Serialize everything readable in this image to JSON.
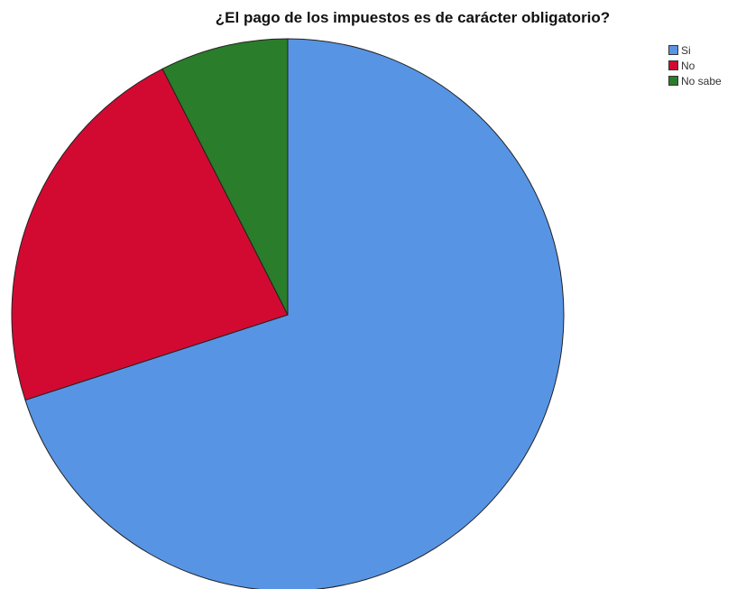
{
  "chart_data": {
    "type": "pie",
    "title": "¿El pago de los impuestos es de carácter obligatorio?",
    "categories": [
      "Si",
      "No",
      "No sabe"
    ],
    "values": [
      70.0,
      22.5,
      7.5
    ],
    "colors": [
      "#5894e4",
      "#d20a32",
      "#2a7d2a"
    ],
    "start_angle_deg": 0,
    "direction": "clockwise",
    "legend_position": "top-right"
  },
  "legend": {
    "items": [
      {
        "label": "Si",
        "color": "#5894e4"
      },
      {
        "label": "No",
        "color": "#d20a32"
      },
      {
        "label": "No sabe",
        "color": "#2a7d2a"
      }
    ]
  }
}
